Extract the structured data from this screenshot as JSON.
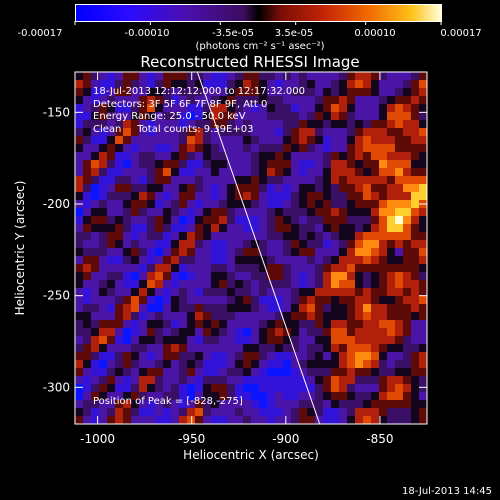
{
  "colorbar": {
    "ticks": [
      "-0.00017",
      "-0.00010",
      "-3.5e-05",
      "3.5e-05",
      "0.00010",
      "0.00017"
    ],
    "tick_values": [
      -0.00017,
      -0.0001,
      -3.5e-05,
      3.5e-05,
      0.0001,
      0.00017
    ],
    "units": "(photons cm⁻² s⁻¹ asec⁻²)"
  },
  "header": {
    "lines": [
      "18-Jul-2013 12:12:12.000 to 12:17:32.000",
      "Detectors: 3F 5F 6F 7F 8F 9F, Att 0",
      "Energy Range: 25.0 - 50.0 keV",
      "Clean     Total counts: 9.39E+03"
    ]
  },
  "footer": {
    "peak_label": "Position of Peak = [-828,-275]",
    "timestamp": "18-Jul-2013 14:45"
  },
  "chart_data": {
    "type": "heatmap",
    "title": "Reconstructed RHESSI Image",
    "xlabel": "Heliocentric X (arcsec)",
    "ylabel": "Heliocentric Y (arcsec)",
    "xlim": [
      -1012,
      -825
    ],
    "ylim": [
      -320,
      -128
    ],
    "xticks": [
      -1000,
      -950,
      -900,
      -850
    ],
    "yticks": [
      -150,
      -200,
      -250,
      -300
    ],
    "xtick_labels": [
      "-1000",
      "-950",
      "-900",
      "-850"
    ],
    "ytick_labels": [
      "-150",
      "-200",
      "-250",
      "-300"
    ],
    "value_range": [
      -0.00017,
      0.00017
    ],
    "grid": false,
    "overlays": {
      "limb_line": {
        "x": [
          -947,
          -882
        ],
        "y": [
          -128,
          -320
        ],
        "color": "#ffffff"
      },
      "peak_position": {
        "x": -828,
        "y": -275
      }
    },
    "features": [
      {
        "name": "bright flare source",
        "x": -840,
        "y": -195,
        "level": 0.0001
      },
      {
        "name": "moderate source",
        "x": -865,
        "y": -270,
        "level": 7e-05
      }
    ]
  }
}
